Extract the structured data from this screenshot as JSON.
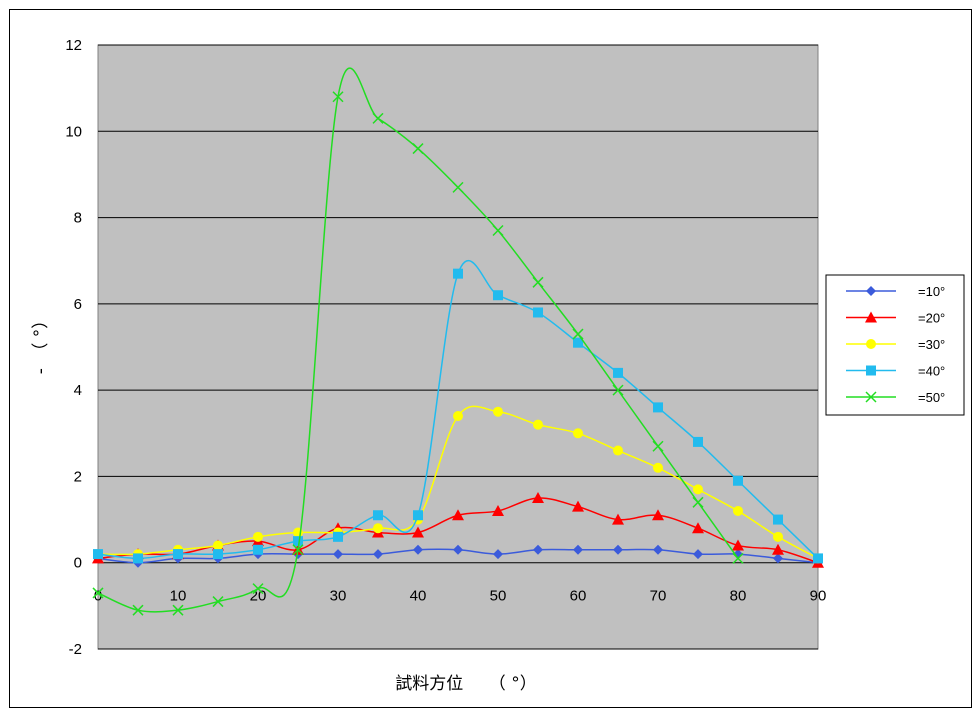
{
  "chart_data": {
    "type": "line",
    "title": "",
    "xlabel": "試料方位　　（ °）",
    "ylabel": "-　（ °）",
    "xlim": [
      0,
      90
    ],
    "ylim": [
      -2,
      12
    ],
    "x_ticks": [
      "0",
      "10",
      "20",
      "30",
      "40",
      "50",
      "60",
      "70",
      "80",
      "90"
    ],
    "y_ticks": [
      "-2",
      "0",
      "2",
      "4",
      "6",
      "8",
      "10",
      "12"
    ],
    "grid": "horizontal",
    "plot_background": "#c0c0c0",
    "legend_position": "right",
    "x": [
      0,
      5,
      10,
      15,
      20,
      25,
      30,
      35,
      40,
      45,
      50,
      55,
      60,
      65,
      70,
      75,
      80,
      85,
      90
    ],
    "series": [
      {
        "name": "=10°",
        "color": "#3b5bdb",
        "marker": "diamond",
        "values": [
          0.1,
          0.0,
          0.1,
          0.1,
          0.2,
          0.2,
          0.2,
          0.2,
          0.3,
          0.3,
          0.2,
          0.3,
          0.3,
          0.3,
          0.3,
          0.2,
          0.2,
          0.1,
          0.0
        ]
      },
      {
        "name": "=20°",
        "color": "#ff0000",
        "marker": "triangle",
        "values": [
          0.1,
          0.2,
          0.2,
          0.4,
          0.5,
          0.3,
          0.8,
          0.7,
          0.7,
          1.1,
          1.2,
          1.5,
          1.3,
          1.0,
          1.1,
          0.8,
          0.4,
          0.3,
          0.0
        ]
      },
      {
        "name": "=30°",
        "color": "#ffff00",
        "marker": "circle",
        "values": [
          0.2,
          0.2,
          0.3,
          0.4,
          0.6,
          0.7,
          0.7,
          0.8,
          1.0,
          3.4,
          3.5,
          3.2,
          3.0,
          2.6,
          2.2,
          1.7,
          1.2,
          0.6,
          0.1
        ]
      },
      {
        "name": "=40°",
        "color": "#22bbee",
        "marker": "square",
        "values": [
          0.2,
          0.1,
          0.2,
          0.2,
          0.3,
          0.5,
          0.6,
          1.1,
          1.1,
          6.7,
          6.2,
          5.8,
          5.1,
          4.4,
          3.6,
          2.8,
          1.9,
          1.0,
          0.1
        ]
      },
      {
        "name": "=50°",
        "color": "#22dd22",
        "marker": "x",
        "values": [
          -0.7,
          -1.1,
          -1.1,
          -0.9,
          -0.6,
          0.3,
          10.8,
          10.3,
          9.6,
          8.7,
          7.7,
          6.5,
          5.3,
          4.0,
          2.7,
          1.4,
          0.1,
          null,
          null
        ]
      }
    ]
  }
}
